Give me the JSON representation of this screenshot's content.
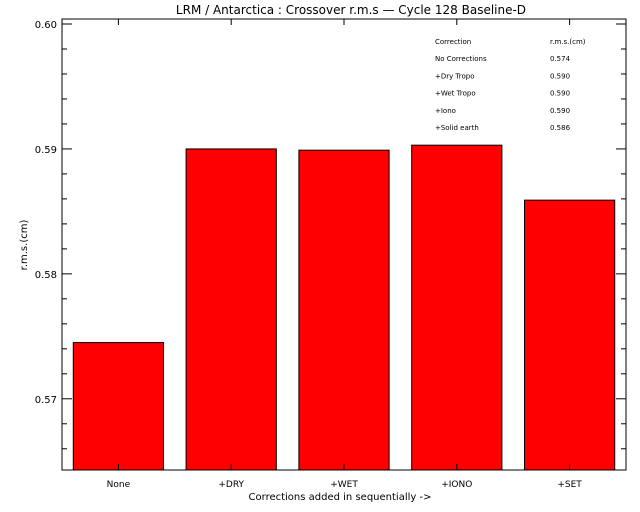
{
  "chart_data": {
    "type": "bar",
    "title": "LRM / Antarctica : Crossover r.m.s — Cycle 128 Baseline-D",
    "xlabel": "Corrections added in sequentially ->",
    "ylabel": "r.m.s.(cm)",
    "categories": [
      "None",
      "+DRY",
      "+WET",
      "+IONO",
      "+SET"
    ],
    "values": [
      0.5745,
      0.59,
      0.5899,
      0.5903,
      0.5859
    ],
    "ylim": [
      0.5643,
      0.6004
    ],
    "yticks": [
      0.57,
      0.58,
      0.59,
      0.6
    ],
    "ytick_labels": [
      "0.57",
      "0.58",
      "0.59",
      "0.60"
    ],
    "grid": false,
    "bar_color": "#ff0000",
    "table": {
      "header": [
        "Correction",
        "r.m.s.(cm)"
      ],
      "rows": [
        [
          "No Corrections",
          "0.574"
        ],
        [
          "+Dry Tropo",
          "0.590"
        ],
        [
          "+Wet Tropo",
          "0.590"
        ],
        [
          "+Iono",
          "0.590"
        ],
        [
          "+Solid earth",
          "0.586"
        ]
      ]
    }
  }
}
